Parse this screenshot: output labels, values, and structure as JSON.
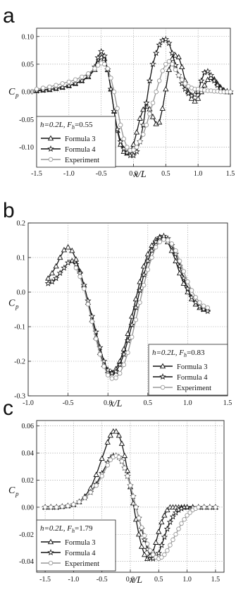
{
  "chart_data": [
    {
      "type": "line",
      "panel": "a",
      "xlabel": "x/L",
      "ylabel": "C",
      "ylabel_sub": "p",
      "xlim": [
        -1.5,
        1.5
      ],
      "ylim": [
        -0.135,
        0.115
      ],
      "xticks": [
        -1.5,
        -1.0,
        -0.5,
        0.0,
        0.5,
        1.0,
        1.5
      ],
      "xtick_labels": [
        "-1.5",
        "-1.0",
        "-0.5",
        "0.0",
        "0.5",
        "1.0",
        "1.5"
      ],
      "yticks": [
        -0.1,
        -0.05,
        0.0,
        0.05,
        0.1
      ],
      "ytick_labels": [
        "-0.10",
        "-0.05",
        "0.00",
        "0.05",
        "0.10"
      ],
      "grid": true,
      "legend_position": "bottom-left",
      "legend_title": {
        "prefix": "h=0.2L, F",
        "sub": "h",
        "suffix": "=0.55"
      },
      "series": [
        {
          "name": "Formula 3",
          "marker": "triangle",
          "color": "#111111",
          "x": [
            -1.5,
            -1.4,
            -1.3,
            -1.2,
            -1.1,
            -1.0,
            -0.9,
            -0.8,
            -0.7,
            -0.6,
            -0.55,
            -0.5,
            -0.45,
            -0.4,
            -0.35,
            -0.3,
            -0.25,
            -0.2,
            -0.15,
            -0.1,
            -0.05,
            0.0,
            0.05,
            0.1,
            0.15,
            0.2,
            0.25,
            0.3,
            0.35,
            0.4,
            0.45,
            0.5,
            0.55,
            0.6,
            0.65,
            0.7,
            0.75,
            0.8,
            0.85,
            0.9,
            0.95,
            1.0,
            1.05,
            1.1,
            1.15,
            1.2,
            1.25,
            1.3,
            1.35,
            1.4,
            1.45,
            1.5
          ],
          "y": [
            0.002,
            0.003,
            0.004,
            0.006,
            0.008,
            0.011,
            0.015,
            0.02,
            0.027,
            0.04,
            0.052,
            0.063,
            0.06,
            0.04,
            0.005,
            -0.035,
            -0.07,
            -0.095,
            -0.108,
            -0.111,
            -0.107,
            -0.095,
            -0.073,
            -0.048,
            -0.032,
            -0.026,
            -0.031,
            -0.045,
            -0.058,
            -0.055,
            -0.03,
            0.005,
            0.04,
            0.06,
            0.066,
            0.063,
            0.045,
            0.02,
            0.0,
            -0.012,
            -0.017,
            -0.012,
            0.0,
            0.012,
            0.022,
            0.026,
            0.023,
            0.015,
            0.008,
            0.003,
            0.0,
            0.0
          ]
        },
        {
          "name": "Formula 4",
          "marker": "star",
          "color": "#111111",
          "x": [
            -1.5,
            -1.4,
            -1.3,
            -1.2,
            -1.1,
            -1.0,
            -0.9,
            -0.8,
            -0.7,
            -0.6,
            -0.55,
            -0.5,
            -0.45,
            -0.4,
            -0.35,
            -0.3,
            -0.25,
            -0.2,
            -0.15,
            -0.1,
            -0.05,
            0.0,
            0.05,
            0.1,
            0.15,
            0.2,
            0.25,
            0.3,
            0.35,
            0.4,
            0.45,
            0.5,
            0.55,
            0.6,
            0.65,
            0.7,
            0.75,
            0.8,
            0.85,
            0.9,
            0.95,
            1.0,
            1.05,
            1.1,
            1.15,
            1.2,
            1.25,
            1.3,
            1.35,
            1.4,
            1.45,
            1.5
          ],
          "y": [
            0.002,
            0.003,
            0.004,
            0.006,
            0.008,
            0.011,
            0.015,
            0.02,
            0.028,
            0.045,
            0.062,
            0.073,
            0.065,
            0.04,
            0.005,
            -0.035,
            -0.068,
            -0.09,
            -0.103,
            -0.11,
            -0.115,
            -0.115,
            -0.108,
            -0.09,
            -0.06,
            -0.02,
            0.02,
            0.05,
            0.07,
            0.085,
            0.093,
            0.095,
            0.088,
            0.07,
            0.048,
            0.03,
            0.015,
            0.005,
            -0.003,
            -0.007,
            -0.005,
            0.0,
            0.02,
            0.035,
            0.037,
            0.03,
            0.02,
            0.012,
            0.006,
            0.002,
            0.001,
            0.0
          ]
        },
        {
          "name": "Experiment",
          "marker": "circle",
          "color": "#999999",
          "x": [
            -1.5,
            -1.4,
            -1.3,
            -1.2,
            -1.1,
            -1.0,
            -0.9,
            -0.8,
            -0.7,
            -0.6,
            -0.55,
            -0.5,
            -0.45,
            -0.4,
            -0.35,
            -0.3,
            -0.25,
            -0.2,
            -0.15,
            -0.1,
            -0.05,
            0.0,
            0.05,
            0.1,
            0.15,
            0.2,
            0.25,
            0.3,
            0.35,
            0.4,
            0.45,
            0.5,
            0.55,
            0.6,
            0.65,
            0.7,
            0.75,
            0.8,
            0.85,
            0.9,
            0.95,
            1.0,
            1.05,
            1.1,
            1.15,
            1.2,
            1.25,
            1.3,
            1.35,
            1.4,
            1.45,
            1.5
          ],
          "y": [
            0.005,
            0.007,
            0.009,
            0.012,
            0.015,
            0.018,
            0.022,
            0.027,
            0.033,
            0.042,
            0.048,
            0.052,
            0.05,
            0.042,
            0.025,
            0.0,
            -0.03,
            -0.06,
            -0.085,
            -0.1,
            -0.106,
            -0.105,
            -0.1,
            -0.09,
            -0.077,
            -0.06,
            -0.04,
            -0.02,
            0.0,
            0.02,
            0.038,
            0.05,
            0.055,
            0.05,
            0.04,
            0.03,
            0.022,
            0.015,
            0.01,
            0.007,
            0.005,
            0.005,
            0.004,
            0.003,
            0.002,
            0.002,
            0.001,
            0.001,
            0.0,
            0.0,
            0.0,
            0.0
          ]
        }
      ]
    },
    {
      "type": "line",
      "panel": "b",
      "xlabel": "x/L",
      "ylabel": "C",
      "ylabel_sub": "p",
      "xlim": [
        -1.0,
        1.5
      ],
      "ylim": [
        -0.3,
        0.2
      ],
      "xticks": [
        -1.0,
        -0.5,
        0.0,
        0.5,
        1.0,
        1.5
      ],
      "xtick_labels": [
        "-1.0",
        "-0.5",
        "0.0",
        "0.5",
        "1.0",
        "1.5"
      ],
      "yticks": [
        -0.3,
        -0.2,
        -0.1,
        0.0,
        0.1,
        0.2
      ],
      "ytick_labels": [
        "-0.3",
        "-0.2",
        "-0.1",
        "0.0",
        "0.1",
        "0.2"
      ],
      "grid": true,
      "legend_position": "bottom-right",
      "legend_title": {
        "prefix": "h=0.2L, F",
        "sub": "h",
        "suffix": "=0.83"
      },
      "series": [
        {
          "name": "Formula 3",
          "marker": "triangle",
          "color": "#111111",
          "x": [
            -0.75,
            -0.7,
            -0.65,
            -0.6,
            -0.55,
            -0.5,
            -0.45,
            -0.4,
            -0.35,
            -0.3,
            -0.25,
            -0.2,
            -0.15,
            -0.1,
            -0.05,
            0.0,
            0.05,
            0.1,
            0.15,
            0.2,
            0.25,
            0.3,
            0.35,
            0.4,
            0.45,
            0.5,
            0.55,
            0.6,
            0.65,
            0.7,
            0.75,
            0.8,
            0.85,
            0.9,
            0.95,
            1.0,
            1.05,
            1.1,
            1.15,
            1.2,
            1.25
          ],
          "y": [
            0.04,
            0.055,
            0.075,
            0.1,
            0.122,
            0.13,
            0.12,
            0.095,
            0.06,
            0.02,
            -0.03,
            -0.08,
            -0.13,
            -0.175,
            -0.21,
            -0.228,
            -0.232,
            -0.222,
            -0.2,
            -0.165,
            -0.12,
            -0.07,
            -0.02,
            0.03,
            0.075,
            0.11,
            0.135,
            0.152,
            0.16,
            0.157,
            0.145,
            0.12,
            0.09,
            0.055,
            0.025,
            0.0,
            -0.02,
            -0.035,
            -0.045,
            -0.05,
            -0.05
          ]
        },
        {
          "name": "Formula 4",
          "marker": "star",
          "color": "#111111",
          "x": [
            -0.75,
            -0.7,
            -0.65,
            -0.6,
            -0.55,
            -0.5,
            -0.45,
            -0.4,
            -0.35,
            -0.3,
            -0.25,
            -0.2,
            -0.15,
            -0.1,
            -0.05,
            0.0,
            0.05,
            0.1,
            0.15,
            0.2,
            0.25,
            0.3,
            0.35,
            0.4,
            0.45,
            0.5,
            0.55,
            0.6,
            0.65,
            0.7,
            0.75,
            0.8,
            0.85,
            0.9,
            0.95,
            1.0,
            1.05,
            1.1,
            1.15,
            1.2,
            1.25
          ],
          "y": [
            0.025,
            0.03,
            0.04,
            0.055,
            0.07,
            0.085,
            0.09,
            0.08,
            0.055,
            0.02,
            -0.025,
            -0.07,
            -0.115,
            -0.16,
            -0.2,
            -0.225,
            -0.235,
            -0.23,
            -0.21,
            -0.18,
            -0.14,
            -0.095,
            -0.045,
            0.005,
            0.05,
            0.09,
            0.12,
            0.145,
            0.158,
            0.162,
            0.155,
            0.135,
            0.11,
            0.075,
            0.04,
            0.01,
            -0.015,
            -0.03,
            -0.042,
            -0.05,
            -0.055
          ]
        },
        {
          "name": "Experiment",
          "marker": "circle",
          "color": "#999999",
          "x": [
            -0.4,
            -0.35,
            -0.3,
            -0.25,
            -0.2,
            -0.15,
            -0.1,
            -0.05,
            0.0,
            0.05,
            0.1,
            0.15,
            0.2,
            0.25,
            0.3,
            0.35,
            0.4,
            0.45,
            0.5,
            0.55,
            0.6,
            0.65,
            0.7,
            0.75,
            0.8,
            0.85,
            0.9,
            0.95,
            1.0,
            1.05,
            1.1,
            1.15,
            1.2,
            1.25
          ],
          "y": [
            0.07,
            0.045,
            0.01,
            -0.035,
            -0.085,
            -0.135,
            -0.18,
            -0.215,
            -0.24,
            -0.25,
            -0.248,
            -0.235,
            -0.21,
            -0.175,
            -0.13,
            -0.08,
            -0.03,
            0.02,
            0.065,
            0.1,
            0.13,
            0.145,
            0.152,
            0.15,
            0.14,
            0.12,
            0.09,
            0.06,
            0.03,
            0.005,
            -0.015,
            -0.03,
            -0.04,
            -0.045
          ]
        }
      ]
    },
    {
      "type": "line",
      "panel": "c",
      "xlabel": "x/L",
      "ylabel": "C",
      "ylabel_sub": "p",
      "xlim": [
        -1.65,
        1.65
      ],
      "ylim": [
        -0.048,
        0.064
      ],
      "xticks": [
        -1.5,
        -1.0,
        -0.5,
        0.0,
        0.5,
        1.0,
        1.5
      ],
      "xtick_labels": [
        "-1.5",
        "-1.0",
        "-0.5",
        "0.0",
        "0.5",
        "1.0",
        "1.5"
      ],
      "yticks": [
        -0.04,
        -0.02,
        0.0,
        0.02,
        0.04,
        0.06
      ],
      "ytick_labels": [
        "-0.04",
        "-0.02",
        "0.00",
        "0.02",
        "0.04",
        "0.06"
      ],
      "grid": true,
      "legend_position": "bottom-left",
      "legend_title": {
        "prefix": "h=0.2L, F",
        "sub": "h",
        "suffix": "=1.79"
      },
      "series": [
        {
          "name": "Formula 3",
          "marker": "triangle",
          "color": "#111111",
          "x": [
            -1.5,
            -1.4,
            -1.3,
            -1.2,
            -1.1,
            -1.0,
            -0.9,
            -0.8,
            -0.7,
            -0.6,
            -0.5,
            -0.4,
            -0.35,
            -0.3,
            -0.25,
            -0.2,
            -0.15,
            -0.1,
            -0.05,
            0.0,
            0.05,
            0.1,
            0.15,
            0.2,
            0.25,
            0.3,
            0.35,
            0.4,
            0.45,
            0.5,
            0.55,
            0.6,
            0.65,
            0.7,
            0.75,
            0.8,
            0.85,
            0.9,
            0.95,
            1.0,
            1.1,
            1.2,
            1.3,
            1.4,
            1.5
          ],
          "y": [
            0.0,
            0.0,
            0.0,
            0.0005,
            0.001,
            0.002,
            0.004,
            0.008,
            0.014,
            0.024,
            0.036,
            0.048,
            0.053,
            0.056,
            0.056,
            0.053,
            0.047,
            0.038,
            0.027,
            0.015,
            0.003,
            -0.009,
            -0.02,
            -0.029,
            -0.035,
            -0.038,
            -0.037,
            -0.033,
            -0.026,
            -0.018,
            -0.011,
            -0.006,
            -0.002,
            0.0,
            0.0,
            0.0,
            0.0,
            0.0,
            0.0,
            0.0,
            0.0,
            0.0,
            0.0,
            0.0,
            0.0
          ]
        },
        {
          "name": "Formula 4",
          "marker": "star",
          "color": "#111111",
          "x": [
            -1.5,
            -1.4,
            -1.3,
            -1.2,
            -1.1,
            -1.0,
            -0.9,
            -0.8,
            -0.7,
            -0.6,
            -0.5,
            -0.4,
            -0.35,
            -0.3,
            -0.25,
            -0.2,
            -0.15,
            -0.1,
            -0.05,
            0.0,
            0.05,
            0.1,
            0.15,
            0.2,
            0.25,
            0.3,
            0.35,
            0.4,
            0.45,
            0.5,
            0.55,
            0.6,
            0.65,
            0.7,
            0.75,
            0.8,
            0.85,
            0.9,
            0.95,
            1.0,
            1.1,
            1.2,
            1.3,
            1.4,
            1.5
          ],
          "y": [
            0.0,
            0.0,
            0.0,
            0.0005,
            0.001,
            0.002,
            0.004,
            0.007,
            0.011,
            0.017,
            0.025,
            0.033,
            0.036,
            0.038,
            0.038,
            0.037,
            0.034,
            0.029,
            0.023,
            0.016,
            0.008,
            0.0,
            -0.008,
            -0.016,
            -0.024,
            -0.031,
            -0.036,
            -0.038,
            -0.037,
            -0.034,
            -0.028,
            -0.022,
            -0.016,
            -0.011,
            -0.007,
            -0.004,
            -0.002,
            -0.001,
            0.0,
            0.0,
            0.0,
            0.0,
            0.0,
            0.0,
            0.0
          ]
        },
        {
          "name": "Experiment",
          "marker": "circle",
          "color": "#999999",
          "x": [
            -1.5,
            -1.4,
            -1.3,
            -1.2,
            -1.1,
            -1.0,
            -0.9,
            -0.8,
            -0.7,
            -0.6,
            -0.5,
            -0.4,
            -0.35,
            -0.3,
            -0.25,
            -0.2,
            -0.15,
            -0.1,
            -0.05,
            0.0,
            0.05,
            0.1,
            0.15,
            0.2,
            0.25,
            0.3,
            0.35,
            0.4,
            0.45,
            0.5,
            0.55,
            0.6,
            0.65,
            0.7,
            0.75,
            0.8,
            0.85,
            0.9,
            0.95,
            1.0,
            1.05,
            1.1,
            1.15,
            1.2,
            1.3,
            1.4,
            1.5
          ],
          "y": [
            0.0,
            0.0,
            0.0,
            0.0005,
            0.001,
            0.002,
            0.004,
            0.007,
            0.011,
            0.016,
            0.023,
            0.031,
            0.035,
            0.037,
            0.038,
            0.037,
            0.034,
            0.029,
            0.023,
            0.016,
            0.008,
            0.0,
            -0.008,
            -0.015,
            -0.021,
            -0.027,
            -0.032,
            -0.035,
            -0.037,
            -0.038,
            -0.037,
            -0.035,
            -0.032,
            -0.028,
            -0.024,
            -0.02,
            -0.016,
            -0.012,
            -0.009,
            -0.006,
            -0.004,
            -0.002,
            -0.001,
            0.0,
            0.0,
            0.0,
            0.0
          ]
        }
      ]
    }
  ]
}
